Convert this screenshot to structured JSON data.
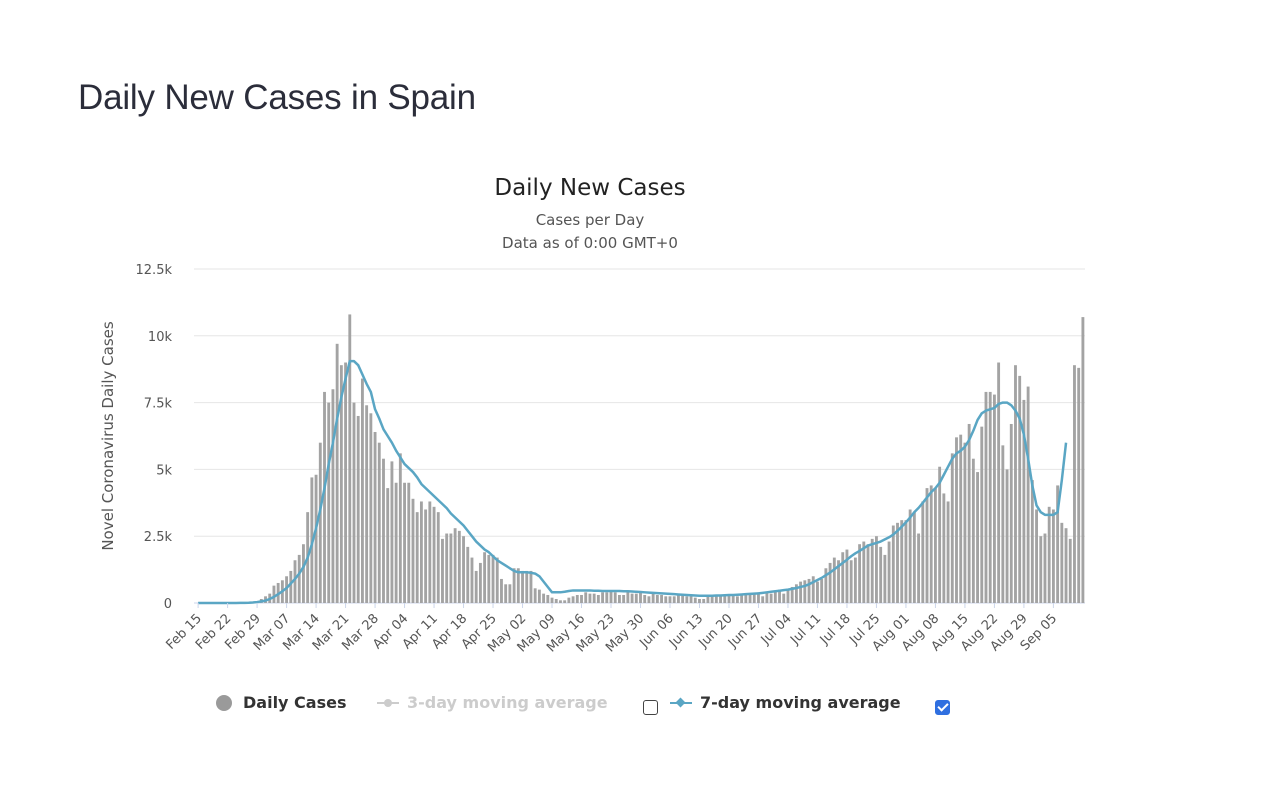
{
  "page": {
    "title": "Daily New Cases in Spain"
  },
  "colors": {
    "bars": "#a3a3a3",
    "ma7": "#5aa6c4",
    "ma3": "#cccccc",
    "grid": "#e6e6e6",
    "checkbox_checked": "#2f6fe0"
  },
  "legend": {
    "daily": {
      "label": "Daily Cases",
      "icon": "circle-marker-icon"
    },
    "ma3": {
      "label": "3-day moving average",
      "icon": "line-circle-marker-icon",
      "enabled": false
    },
    "ma7": {
      "label": "7-day moving average",
      "icon": "line-diamond-marker-icon",
      "enabled": true
    }
  },
  "chart_data": {
    "type": "bar",
    "title": "Daily New Cases",
    "subtitle": "Cases per Day",
    "subtitle2": "Data as of 0:00 GMT+0",
    "ylabel": "Novel Coronavirus Daily Cases",
    "ylim": [
      0,
      12500
    ],
    "yticks": [
      0,
      2500,
      5000,
      7500,
      10000,
      12500
    ],
    "ytick_labels": [
      "0",
      "2.5k",
      "5k",
      "7.5k",
      "10k",
      "12.5k"
    ],
    "grid": true,
    "legend_position": "bottom-center",
    "x_start": "2020-02-15",
    "xtick_labels": [
      "Feb 15",
      "Feb 22",
      "Feb 29",
      "Mar 07",
      "Mar 14",
      "Mar 21",
      "Mar 28",
      "Apr 04",
      "Apr 11",
      "Apr 18",
      "Apr 25",
      "May 02",
      "May 09",
      "May 16",
      "May 23",
      "May 30",
      "Jun 06",
      "Jun 13",
      "Jun 20",
      "Jun 27",
      "Jul 04",
      "Jul 11",
      "Jul 18",
      "Jul 25",
      "Aug 01",
      "Aug 08",
      "Aug 15",
      "Aug 22",
      "Aug 29",
      "Sep 05"
    ],
    "series": [
      {
        "name": "Daily Cases",
        "values": [
          0,
          0,
          0,
          0,
          0,
          0,
          0,
          0,
          0,
          0,
          10,
          20,
          30,
          40,
          70,
          150,
          250,
          350,
          650,
          750,
          850,
          1000,
          1200,
          1600,
          1800,
          2200,
          3400,
          4700,
          4800,
          6000,
          7900,
          7500,
          8000,
          9700,
          8900,
          9000,
          10800,
          7500,
          7000,
          8400,
          7400,
          7100,
          6400,
          6000,
          5400,
          4300,
          5300,
          4500,
          5600,
          4500,
          4500,
          3900,
          3400,
          3800,
          3500,
          3800,
          3600,
          3400,
          2400,
          2600,
          2600,
          2800,
          2700,
          2500,
          2100,
          1700,
          1200,
          1500,
          1900,
          1800,
          1800,
          1700,
          900,
          700,
          700,
          1300,
          1300,
          1200,
          1200,
          1200,
          550,
          500,
          350,
          300,
          200,
          150,
          100,
          100,
          200,
          250,
          300,
          300,
          400,
          350,
          350,
          300,
          400,
          400,
          450,
          400,
          300,
          300,
          400,
          350,
          350,
          400,
          300,
          250,
          350,
          300,
          300,
          250,
          250,
          250,
          300,
          300,
          250,
          250,
          200,
          150,
          150,
          250,
          300,
          300,
          300,
          300,
          300,
          300,
          250,
          300,
          300,
          350,
          350,
          400,
          250,
          400,
          350,
          450,
          500,
          350,
          500,
          600,
          700,
          800,
          850,
          900,
          1000,
          800,
          900,
          1300,
          1500,
          1700,
          1600,
          1900,
          2000,
          1600,
          1700,
          2200,
          2300,
          2200,
          2400,
          2500,
          2100,
          1800,
          2300,
          2900,
          3000,
          3100,
          3100,
          3500,
          3400,
          2600,
          3800,
          4300,
          4400,
          4300,
          5100,
          4100,
          3800,
          5600,
          6200,
          6300,
          6000,
          6700,
          5400,
          4900,
          6600,
          7900,
          7900,
          7800,
          9000,
          5900,
          5000,
          6700,
          8900,
          8500,
          7600,
          8100,
          4600,
          3500,
          2500,
          2600,
          3600,
          3500,
          4400,
          3000,
          2800,
          2400,
          8900,
          8800,
          10700
        ]
      },
      {
        "name": "7-day moving average",
        "values": [
          0,
          0,
          0,
          0,
          0,
          0,
          0,
          0,
          0,
          0,
          3,
          6,
          10,
          20,
          35,
          60,
          90,
          150,
          230,
          330,
          440,
          560,
          730,
          900,
          1100,
          1350,
          1700,
          2200,
          2800,
          3500,
          4300,
          5200,
          6000,
          6900,
          7700,
          8400,
          9050,
          9050,
          8900,
          8550,
          8200,
          7900,
          7250,
          6900,
          6500,
          6250,
          6000,
          5700,
          5450,
          5200,
          5050,
          4900,
          4700,
          4450,
          4300,
          4150,
          4000,
          3850,
          3700,
          3550,
          3350,
          3200,
          3050,
          2900,
          2700,
          2500,
          2300,
          2150,
          2000,
          1900,
          1750,
          1600,
          1500,
          1400,
          1300,
          1200,
          1150,
          1150,
          1150,
          1130,
          1100,
          1000,
          800,
          600,
          400,
          400,
          400,
          420,
          450,
          470,
          470,
          470,
          470,
          470,
          460,
          460,
          450,
          450,
          450,
          450,
          450,
          440,
          440,
          430,
          420,
          410,
          400,
          390,
          380,
          370,
          360,
          350,
          340,
          330,
          320,
          310,
          300,
          290,
          280,
          270,
          270,
          270,
          270,
          280,
          280,
          290,
          300,
          300,
          310,
          320,
          330,
          340,
          350,
          360,
          380,
          400,
          420,
          440,
          460,
          480,
          500,
          530,
          560,
          600,
          640,
          700,
          780,
          860,
          940,
          1040,
          1140,
          1260,
          1380,
          1500,
          1620,
          1750,
          1860,
          1950,
          2050,
          2150,
          2200,
          2250,
          2300,
          2380,
          2460,
          2560,
          2700,
          2860,
          3020,
          3200,
          3400,
          3560,
          3750,
          3950,
          4150,
          4300,
          4500,
          4800,
          5100,
          5400,
          5600,
          5700,
          5850,
          6100,
          6450,
          6850,
          7100,
          7200,
          7250,
          7300,
          7450,
          7500,
          7500,
          7400,
          7200,
          6900,
          6300,
          5400,
          4400,
          3650,
          3400,
          3300,
          3300,
          3300,
          3400,
          4600,
          6000
        ]
      }
    ]
  }
}
